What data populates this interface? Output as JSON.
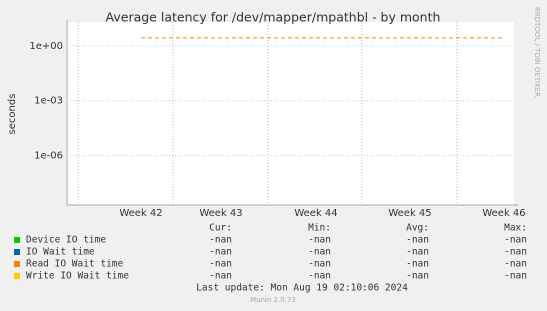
{
  "chart_data": {
    "type": "line",
    "title": "Average latency for /dev/mapper/mpathbl - by month",
    "y_label": "seconds",
    "side_label": "RRDTOOL / TOBI OETIKER",
    "categories": [
      "Week 42",
      "Week 43",
      "Week 44",
      "Week 45",
      "Week 46"
    ],
    "log_scale": true,
    "grid": true,
    "ylim": [
      2e-09,
      20
    ],
    "yticks": [
      {
        "value": 1,
        "label": "1e+00"
      },
      {
        "value": 0.001,
        "label": "1e-03"
      },
      {
        "value": 1e-06,
        "label": "1e-06"
      }
    ],
    "legend_headers": [
      "Cur:",
      "Min:",
      "Avg:",
      "Max:"
    ],
    "series": [
      {
        "name": "Device IO time",
        "color": "#00cc00",
        "values": [
          null,
          null,
          null,
          null,
          null
        ],
        "stats": [
          "-nan",
          "-nan",
          "-nan",
          "-nan"
        ]
      },
      {
        "name": "IO Wait time",
        "color": "#0066b3",
        "values": [
          null,
          null,
          null,
          null,
          null
        ],
        "stats": [
          "-nan",
          "-nan",
          "-nan",
          "-nan"
        ]
      },
      {
        "name": "Read IO Wait time",
        "color": "#ff8000",
        "values": [
          2.7,
          2.7,
          2.7,
          2.7,
          2.7
        ],
        "stats": [
          "-nan",
          "-nan",
          "-nan",
          "-nan"
        ]
      },
      {
        "name": "Write IO Wait time",
        "color": "#ffcc00",
        "values": [
          null,
          null,
          null,
          null,
          null
        ],
        "stats": [
          "-nan",
          "-nan",
          "-nan",
          "-nan"
        ]
      }
    ],
    "last_update": "Last update: Mon Aug 19 02:10:06 2024",
    "footer": "Munin 2.0.73"
  }
}
